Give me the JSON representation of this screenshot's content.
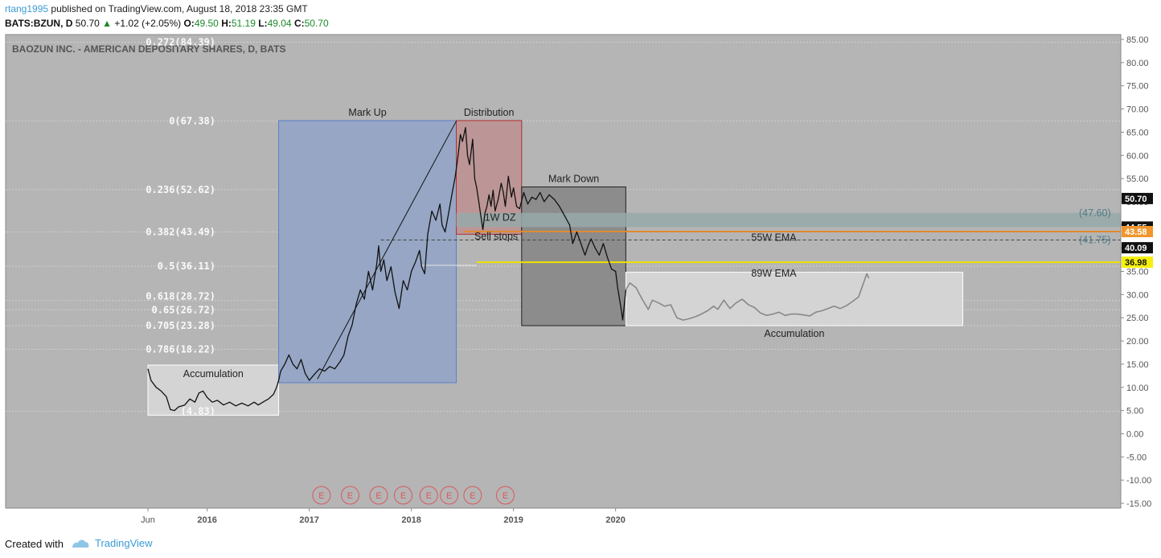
{
  "header": {
    "user": "rtang1995",
    "published": "published on TradingView.com, August 18, 2018 23:35 GMT",
    "symbol": "BATS:BZUN, D",
    "price": "50.70",
    "change_arrow": "▲",
    "change": "+1.02 (+2.05%)",
    "o_label": "O:",
    "o": "49.50",
    "h_label": "H:",
    "h": "51.19",
    "l_label": "L:",
    "l": "49.04",
    "c_label": "C:",
    "c": "50.70"
  },
  "footer": {
    "created_with": "Created with",
    "brand": "TradingView"
  },
  "colors": {
    "plot_bg": "#b5b5b5",
    "markup_box": "#96a6c4",
    "distribution_box": "#bc9696",
    "markdown_box": "#8c8c8c",
    "accum_box": "#d4d4d4",
    "zone": "#97a9a9",
    "ema55": "#e08a2e",
    "ema89": "#f0e200"
  },
  "chart_data": {
    "type": "line",
    "title": "BAOZUN INC. - AMERICAN DEPOSITARY SHARES, D, BATS",
    "ylim": [
      -15,
      85
    ],
    "y_ticks": [
      "85.00",
      "80.00",
      "75.00",
      "70.00",
      "65.00",
      "60.00",
      "55.00",
      "50.00",
      "45.00",
      "40.00",
      "35.00",
      "30.00",
      "25.00",
      "20.00",
      "15.00",
      "10.00",
      "5.00",
      "0.00",
      "-5.00",
      "-10.00",
      "-15.00"
    ],
    "x_ticks": [
      {
        "label": "Jun",
        "year": 2015.42
      },
      {
        "label": "2016",
        "year": 2016.0
      },
      {
        "label": "2017",
        "year": 2017.0
      },
      {
        "label": "2018",
        "year": 2018.0
      },
      {
        "label": "2019",
        "year": 2019.0
      },
      {
        "label": "2020",
        "year": 2020.0
      }
    ],
    "fib_levels": [
      {
        "label": "0.272(84.39)",
        "value": 84.39
      },
      {
        "label": "0(67.38)",
        "value": 67.38
      },
      {
        "label": "0.236(52.62)",
        "value": 52.62
      },
      {
        "label": "0.382(43.49)",
        "value": 43.49
      },
      {
        "label": "0.5(36.11)",
        "value": 36.11
      },
      {
        "label": "0.618(28.72)",
        "value": 28.72
      },
      {
        "label": "0.65(26.72)",
        "value": 26.72
      },
      {
        "label": "0.705(23.28)",
        "value": 23.28
      },
      {
        "label": "0.786(18.22)",
        "value": 18.22
      },
      {
        "label": "(4.83)",
        "value": 4.83
      }
    ],
    "price_series": [
      [
        2015.42,
        14.0
      ],
      [
        2015.45,
        11.5
      ],
      [
        2015.5,
        10.0
      ],
      [
        2015.55,
        9.2
      ],
      [
        2015.6,
        8.0
      ],
      [
        2015.64,
        5.2
      ],
      [
        2015.68,
        5.0
      ],
      [
        2015.72,
        5.8
      ],
      [
        2015.78,
        6.2
      ],
      [
        2015.83,
        7.5
      ],
      [
        2015.88,
        6.8
      ],
      [
        2015.92,
        8.8
      ],
      [
        2015.96,
        9.2
      ],
      [
        2016.0,
        7.8
      ],
      [
        2016.05,
        6.8
      ],
      [
        2016.1,
        7.2
      ],
      [
        2016.16,
        6.2
      ],
      [
        2016.22,
        6.8
      ],
      [
        2016.28,
        6.0
      ],
      [
        2016.34,
        6.6
      ],
      [
        2016.4,
        6.0
      ],
      [
        2016.46,
        6.8
      ],
      [
        2016.5,
        6.2
      ],
      [
        2016.56,
        7.0
      ],
      [
        2016.6,
        7.5
      ],
      [
        2016.65,
        8.5
      ],
      [
        2016.68,
        10.0
      ],
      [
        2016.7,
        11.5
      ],
      [
        2016.72,
        13.5
      ],
      [
        2016.76,
        15.0
      ],
      [
        2016.8,
        17.0
      ],
      [
        2016.84,
        15.0
      ],
      [
        2016.88,
        14.0
      ],
      [
        2016.92,
        16.0
      ],
      [
        2016.96,
        13.0
      ],
      [
        2017.0,
        11.5
      ],
      [
        2017.05,
        12.8
      ],
      [
        2017.1,
        14.0
      ],
      [
        2017.15,
        13.5
      ],
      [
        2017.2,
        14.5
      ],
      [
        2017.25,
        14.0
      ],
      [
        2017.3,
        15.5
      ],
      [
        2017.34,
        17.0
      ],
      [
        2017.38,
        21.0
      ],
      [
        2017.42,
        23.5
      ],
      [
        2017.46,
        28.0
      ],
      [
        2017.5,
        31.0
      ],
      [
        2017.54,
        29.0
      ],
      [
        2017.58,
        35.0
      ],
      [
        2017.62,
        31.0
      ],
      [
        2017.66,
        36.5
      ],
      [
        2017.68,
        40.5
      ],
      [
        2017.7,
        35.0
      ],
      [
        2017.73,
        37.5
      ],
      [
        2017.76,
        33.0
      ],
      [
        2017.8,
        36.0
      ],
      [
        2017.84,
        30.5
      ],
      [
        2017.88,
        27.0
      ],
      [
        2017.92,
        33.0
      ],
      [
        2017.96,
        31.0
      ],
      [
        2018.0,
        35.0
      ],
      [
        2018.04,
        37.0
      ],
      [
        2018.08,
        39.5
      ],
      [
        2018.1,
        36.0
      ],
      [
        2018.13,
        34.5
      ],
      [
        2018.16,
        43.0
      ],
      [
        2018.2,
        48.0
      ],
      [
        2018.24,
        46.0
      ],
      [
        2018.28,
        49.5
      ],
      [
        2018.3,
        45.0
      ],
      [
        2018.33,
        43.5
      ],
      [
        2018.36,
        47.0
      ],
      [
        2018.4,
        52.0
      ],
      [
        2018.43,
        55.5
      ],
      [
        2018.46,
        60.5
      ],
      [
        2018.48,
        64.5
      ],
      [
        2018.5,
        63.0
      ],
      [
        2018.53,
        66.0
      ],
      [
        2018.55,
        60.0
      ],
      [
        2018.57,
        58.0
      ],
      [
        2018.6,
        63.5
      ],
      [
        2018.62,
        55.0
      ],
      [
        2018.64,
        53.0
      ],
      [
        2018.66,
        50.0
      ],
      [
        2018.68,
        47.0
      ],
      [
        2018.7,
        44.0
      ],
      [
        2018.72,
        47.5
      ],
      [
        2018.74,
        49.0
      ],
      [
        2018.76,
        51.5
      ],
      [
        2018.78,
        49.0
      ],
      [
        2018.8,
        52.5
      ],
      [
        2018.82,
        48.0
      ],
      [
        2018.85,
        50.5
      ],
      [
        2018.88,
        54.0
      ],
      [
        2018.9,
        52.0
      ],
      [
        2018.92,
        49.0
      ],
      [
        2018.95,
        55.5
      ],
      [
        2018.98,
        51.0
      ],
      [
        2019.0,
        53.0
      ],
      [
        2019.03,
        49.0
      ],
      [
        2019.06,
        48.5
      ],
      [
        2019.1,
        52.0
      ],
      [
        2019.14,
        49.5
      ],
      [
        2019.18,
        51.0
      ],
      [
        2019.22,
        50.5
      ],
      [
        2019.26,
        52.0
      ],
      [
        2019.3,
        50.0
      ],
      [
        2019.35,
        51.5
      ],
      [
        2019.4,
        50.5
      ],
      [
        2019.45,
        49.0
      ],
      [
        2019.5,
        47.0
      ],
      [
        2019.55,
        45.0
      ],
      [
        2019.58,
        41.0
      ],
      [
        2019.62,
        43.5
      ],
      [
        2019.66,
        41.0
      ],
      [
        2019.7,
        38.5
      ],
      [
        2019.73,
        40.5
      ],
      [
        2019.76,
        42.0
      ],
      [
        2019.8,
        40.0
      ],
      [
        2019.84,
        38.5
      ],
      [
        2019.88,
        41.0
      ],
      [
        2019.92,
        38.0
      ],
      [
        2019.96,
        35.5
      ],
      [
        2020.0,
        35.0
      ],
      [
        2020.02,
        31.5
      ],
      [
        2020.05,
        27.5
      ],
      [
        2020.07,
        24.5
      ],
      [
        2020.1,
        31.0
      ],
      [
        2020.14,
        32.5
      ],
      [
        2020.2,
        31.5
      ],
      [
        2020.26,
        29.0
      ],
      [
        2020.32,
        26.8
      ],
      [
        2020.36,
        28.8
      ],
      [
        2020.42,
        28.2
      ],
      [
        2020.48,
        27.5
      ],
      [
        2020.54,
        27.8
      ],
      [
        2020.6,
        25.0
      ],
      [
        2020.66,
        24.5
      ],
      [
        2020.72,
        24.8
      ],
      [
        2020.78,
        25.2
      ],
      [
        2020.84,
        25.8
      ],
      [
        2020.9,
        26.5
      ],
      [
        2020.96,
        27.5
      ],
      [
        2021.0,
        26.8
      ],
      [
        2021.06,
        28.8
      ],
      [
        2021.12,
        27.0
      ],
      [
        2021.18,
        28.2
      ],
      [
        2021.24,
        29.0
      ],
      [
        2021.3,
        27.8
      ],
      [
        2021.36,
        27.2
      ],
      [
        2021.42,
        26.0
      ],
      [
        2021.48,
        25.5
      ],
      [
        2021.54,
        25.8
      ],
      [
        2021.6,
        26.2
      ],
      [
        2021.66,
        25.5
      ],
      [
        2021.72,
        25.8
      ],
      [
        2021.78,
        25.8
      ],
      [
        2021.84,
        25.6
      ],
      [
        2021.9,
        25.4
      ],
      [
        2021.96,
        26.2
      ],
      [
        2022.02,
        26.5
      ],
      [
        2022.08,
        27.0
      ],
      [
        2022.14,
        27.5
      ],
      [
        2022.2,
        27.0
      ],
      [
        2022.26,
        27.6
      ],
      [
        2022.32,
        28.5
      ],
      [
        2022.38,
        29.5
      ],
      [
        2022.42,
        32.0
      ],
      [
        2022.46,
        34.5
      ],
      [
        2022.48,
        33.5
      ]
    ],
    "ema55": 43.58,
    "ema89": 36.98,
    "zone_top": 47.6,
    "zone_bottom": 44.55,
    "dashed_level": 41.75,
    "price_labels": [
      {
        "text": "50.70",
        "value": 50.7,
        "style": "black"
      },
      {
        "text": "44.55",
        "value": 44.55,
        "style": "black"
      },
      {
        "text": "43.58",
        "value": 43.58,
        "style": "orange"
      },
      {
        "text": "40.09",
        "value": 40.09,
        "style": "black"
      },
      {
        "text": "36.98",
        "value": 36.98,
        "style": "yellow"
      }
    ],
    "phases": [
      {
        "label": "Accumulation",
        "x0": 2015.42,
        "x1": 2016.7,
        "y0": 4.0,
        "y1": 14.8,
        "style": "accum",
        "label_pos": "inside-top"
      },
      {
        "label": "Mark Up",
        "x0": 2016.7,
        "x1": 2018.44,
        "y0": 11.0,
        "y1": 67.5,
        "style": "markup",
        "label_pos": "above"
      },
      {
        "label": "Distribution",
        "x0": 2018.44,
        "x1": 2019.08,
        "y0": 43.0,
        "y1": 67.5,
        "style": "distribution",
        "label_pos": "above"
      },
      {
        "label": "Mark Down",
        "x0": 2019.08,
        "x1": 2020.1,
        "y0": 23.3,
        "y1": 53.2,
        "style": "markdown",
        "label_pos": "above"
      },
      {
        "label": "Accumulation",
        "x0": 2020.1,
        "x1": 2023.4,
        "y0": 23.3,
        "y1": 34.8,
        "style": "accum",
        "label_pos": "below"
      }
    ],
    "annotations": [
      {
        "text": "Sell stops",
        "x": 2018.83,
        "y": 42.5
      },
      {
        "text": "1W DZ",
        "x": 2018.87,
        "y": 46.6
      },
      {
        "text": "(47.60)",
        "x": 2024.85,
        "y": 47.6,
        "style": "teal"
      },
      {
        "text": "(41.75)",
        "x": 2024.85,
        "y": 41.75,
        "style": "teal"
      },
      {
        "text": "55W EMA",
        "x": 2021.55,
        "y": 42.3
      },
      {
        "text": "89W EMA",
        "x": 2021.55,
        "y": 34.6
      }
    ],
    "earnings_marker": "E",
    "earnings": [
      2017.12,
      2017.4,
      2017.68,
      2017.92,
      2018.17,
      2018.37,
      2018.6,
      2018.92
    ]
  }
}
